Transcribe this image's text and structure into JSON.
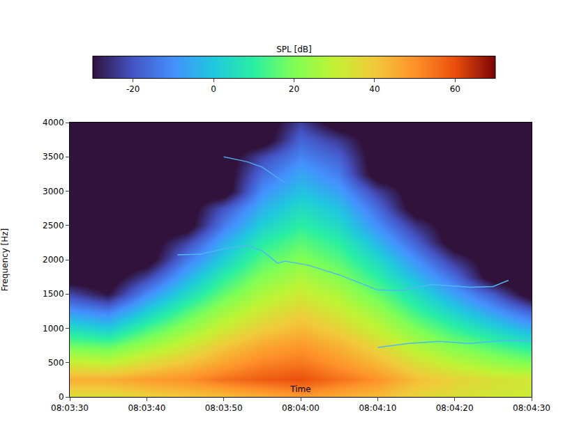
{
  "chart_data": {
    "type": "heatmap",
    "x_label": "Time",
    "y_label": "Frequency [Hz]",
    "colorbar_title": "SPL [dB]",
    "x": [
      "08:03:30",
      "08:03:35",
      "08:03:40",
      "08:03:45",
      "08:03:50",
      "08:03:55",
      "08:04:00",
      "08:04:05",
      "08:04:10",
      "08:04:15",
      "08:04:20",
      "08:04:25",
      "08:04:30"
    ],
    "y": [
      0,
      250,
      500,
      750,
      1000,
      1250,
      1500,
      1750,
      2000,
      2250,
      2500,
      2750,
      3000,
      3250,
      3500,
      3750,
      4000
    ],
    "z": [
      [
        35,
        35,
        38,
        40,
        42,
        45,
        48,
        45,
        42,
        38,
        35,
        33,
        32
      ],
      [
        45,
        45,
        48,
        50,
        55,
        58,
        60,
        55,
        50,
        42,
        38,
        35,
        33
      ],
      [
        32,
        30,
        36,
        41,
        47,
        52,
        54,
        49,
        43,
        35,
        29,
        24,
        20
      ],
      [
        18,
        16,
        24,
        32,
        40,
        46,
        49,
        44,
        37,
        27,
        20,
        14,
        8
      ],
      [
        5,
        1,
        13,
        23,
        32,
        39,
        43,
        38,
        30,
        20,
        11,
        3,
        -5
      ],
      [
        -9,
        -13,
        1,
        14,
        25,
        33,
        38,
        32,
        24,
        12,
        2,
        -8,
        -18
      ],
      [
        -22,
        -30,
        -11,
        4,
        17,
        27,
        32,
        27,
        17,
        5,
        -7,
        -19,
        -35
      ],
      [
        -35,
        -35,
        -23,
        -5,
        10,
        21,
        27,
        21,
        10,
        -3,
        -16,
        -35,
        -35
      ],
      [
        -35,
        -35,
        -35,
        -14,
        2,
        15,
        21,
        15,
        4,
        -10,
        -25,
        -35,
        -35
      ],
      [
        -35,
        -35,
        -35,
        -23,
        -5,
        9,
        16,
        10,
        -3,
        -18,
        -35,
        -35,
        -35
      ],
      [
        -35,
        -35,
        -35,
        -35,
        -13,
        2,
        10,
        4,
        -10,
        -25,
        -35,
        -35,
        -35
      ],
      [
        -35,
        -35,
        -35,
        -35,
        -20,
        -4,
        5,
        -1,
        -16,
        -35,
        -35,
        -35,
        -35
      ],
      [
        -35,
        -35,
        -35,
        -35,
        -35,
        -10,
        -1,
        -7,
        -23,
        -35,
        -35,
        -35,
        -35
      ],
      [
        -35,
        -35,
        -35,
        -35,
        -35,
        -16,
        -6,
        -13,
        -35,
        -35,
        -35,
        -35,
        -35
      ],
      [
        -35,
        -35,
        -35,
        -35,
        -35,
        -22,
        -12,
        -18,
        -35,
        -35,
        -35,
        -35,
        -35
      ],
      [
        -35,
        -35,
        -35,
        -35,
        -35,
        -35,
        -17,
        -24,
        -35,
        -35,
        -35,
        -35,
        -35
      ],
      [
        -35,
        -35,
        -35,
        -35,
        -35,
        -35,
        -23,
        -35,
        -35,
        -35,
        -35,
        -35,
        -35
      ]
    ],
    "zlim": [
      -30,
      70
    ],
    "zticks": [
      -20,
      0,
      20,
      40,
      60
    ],
    "series": [
      {
        "type": "line",
        "color": "#4fa8f0",
        "x": [
          "08:03:50",
          "08:03:53",
          "08:03:55",
          "08:03:58"
        ],
        "values": [
          3500,
          3430,
          3350,
          3120
        ]
      },
      {
        "type": "line",
        "color": "#4fb8f0",
        "x": [
          "08:03:44",
          "08:03:47",
          "08:03:50",
          "08:03:53",
          "08:03:55",
          "08:03:57",
          "08:03:58",
          "08:04:01",
          "08:04:05",
          "08:04:10",
          "08:04:13",
          "08:04:17",
          "08:04:22",
          "08:04:25",
          "08:04:27"
        ],
        "values": [
          2070,
          2080,
          2160,
          2210,
          2130,
          1950,
          1980,
          1920,
          1780,
          1560,
          1550,
          1640,
          1600,
          1610,
          1700
        ]
      },
      {
        "type": "line",
        "color": "#4fb8f0",
        "x": [
          "08:04:10",
          "08:04:14",
          "08:04:18",
          "08:04:22",
          "08:04:26",
          "08:04:30"
        ],
        "values": [
          720,
          780,
          810,
          780,
          820,
          820
        ]
      }
    ],
    "xlim": [
      "08:03:30",
      "08:04:30"
    ],
    "ylim": [
      0,
      4000
    ],
    "xticks": [
      "08:03:30",
      "08:03:40",
      "08:03:50",
      "08:04:00",
      "08:04:10",
      "08:04:20",
      "08:04:30"
    ],
    "yticks": [
      0,
      500,
      1000,
      1500,
      2000,
      2500,
      3000,
      3500,
      4000
    ]
  }
}
